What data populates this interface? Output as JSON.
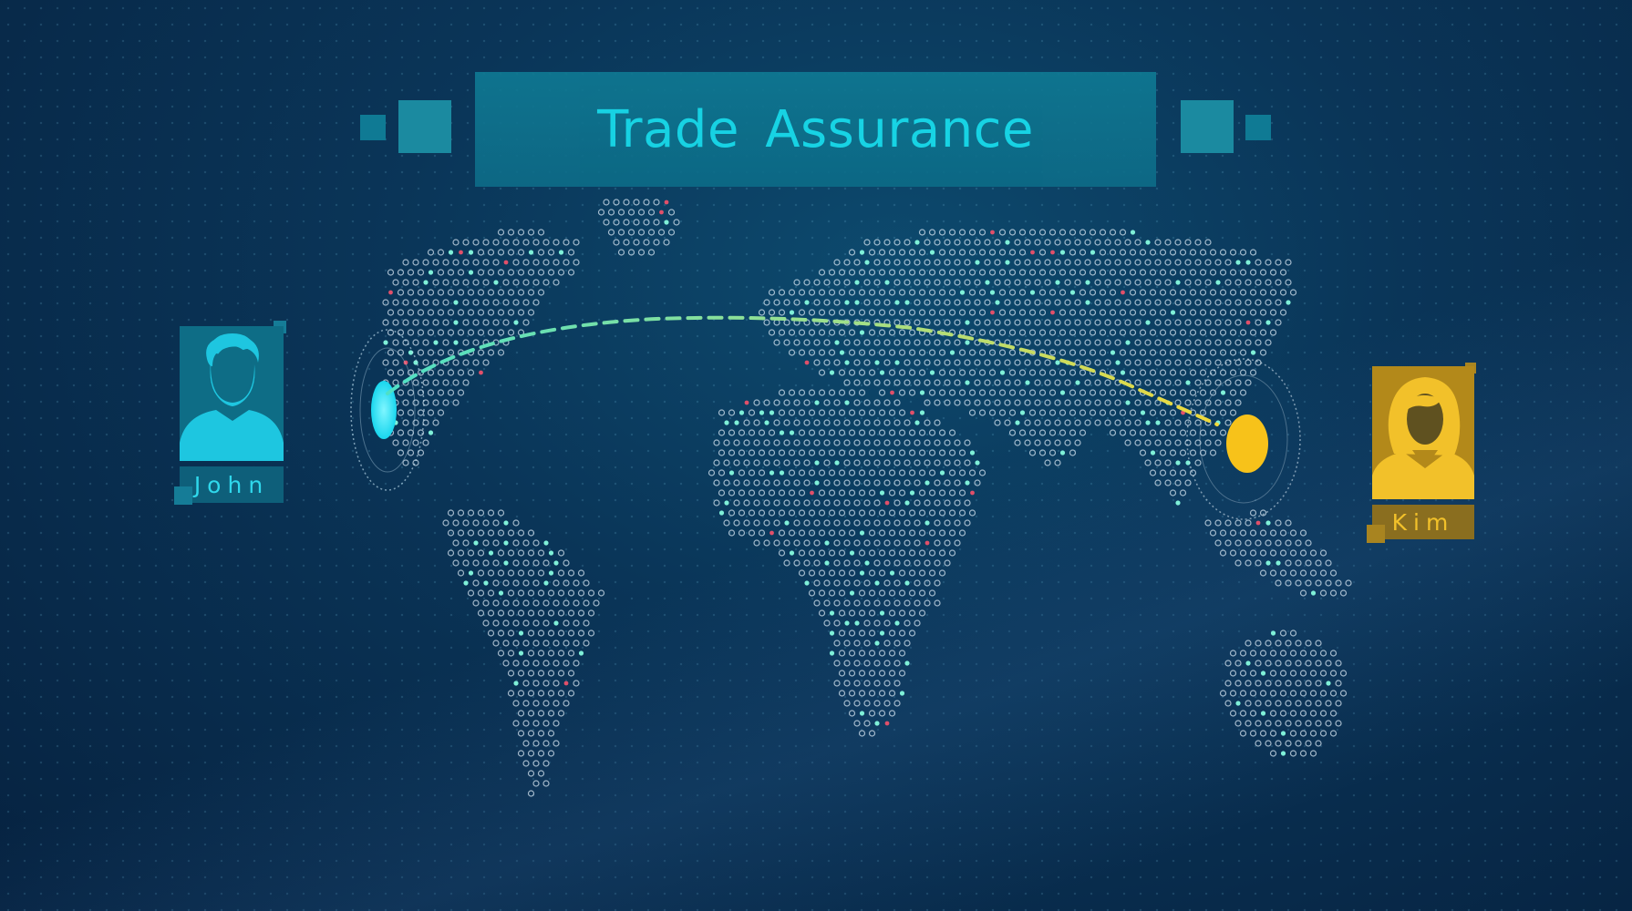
{
  "title": "Trade Assurance",
  "people": {
    "left": {
      "name": "John",
      "color": "#19d6ee"
    },
    "right": {
      "name": "Kim",
      "color": "#f7c21a"
    }
  },
  "colors": {
    "background": "#0a3558",
    "accent": "#19e3f2",
    "route_start": "#4fe0c6",
    "route_end": "#f0d93a",
    "map_dot": "#d7e6f2"
  },
  "icons": [
    "person-male-icon",
    "person-female-icon",
    "map-dots",
    "location-pin-icon"
  ]
}
